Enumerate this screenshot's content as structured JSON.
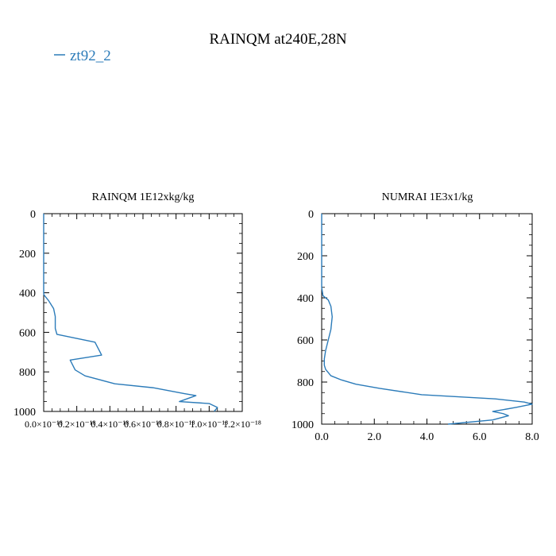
{
  "figure": {
    "title": "RAINQM at240E,28N",
    "legend": {
      "label": "zt92_2",
      "color": "#2b7bb9"
    }
  },
  "chart_data": [
    {
      "type": "line",
      "title": "RAINQM  1E12xkg/kg",
      "xlim": [
        0,
        1.2e-18
      ],
      "ylim": [
        1000,
        0
      ],
      "y_inverted": true,
      "xticks": [
        0,
        2e-19,
        4e-19,
        6e-19,
        8e-19,
        1e-18,
        1.2e-18
      ],
      "xtick_labels": [
        "0.0×10⁻¹⁸",
        "0.2×10⁻¹⁸",
        "0.4×10⁻¹⁸",
        "0.6×10⁻¹⁸",
        "0.8×10⁻¹⁸",
        "1.0×10⁻¹⁸",
        "1.2×10⁻¹⁸"
      ],
      "yticks": [
        0,
        200,
        400,
        600,
        800,
        1000
      ],
      "ytick_labels": [
        "0",
        "200",
        "400",
        "600",
        "800",
        "1000"
      ],
      "series": [
        {
          "name": "zt92_2",
          "color": "#2b7bb9",
          "x": [
            0,
            0,
            0,
            0,
            0,
            0,
            0,
            1e-21,
            3e-20,
            6e-20,
            7e-20,
            7e-20,
            7e-20,
            8e-20,
            3.1e-19,
            3.5e-19,
            1.6e-19,
            1.9e-19,
            2.5e-19,
            4.3e-19,
            6.6e-19,
            8.5e-19,
            9.2e-19,
            8.2e-19,
            1e-18,
            1.05e-18,
            1.03e-18
          ],
          "y": [
            0,
            100,
            200,
            300,
            350,
            380,
            400,
            410,
            440,
            480,
            520,
            560,
            580,
            610,
            650,
            715,
            740,
            790,
            820,
            860,
            880,
            910,
            920,
            950,
            960,
            980,
            1000
          ]
        }
      ]
    },
    {
      "type": "line",
      "title": "NUMRAI  1E3x1/kg",
      "xlim": [
        0,
        8
      ],
      "ylim": [
        1000,
        0
      ],
      "y_inverted": true,
      "xticks": [
        0,
        2,
        4,
        6,
        8
      ],
      "xtick_labels": [
        "0.0",
        "2.0",
        "4.0",
        "6.0",
        "8.0"
      ],
      "yticks": [
        0,
        200,
        400,
        600,
        800,
        1000
      ],
      "ytick_labels": [
        "0",
        "200",
        "400",
        "600",
        "800",
        "1000"
      ],
      "series": [
        {
          "name": "zt92_2",
          "color": "#2b7bb9",
          "x": [
            0,
            0,
            0,
            0,
            0.05,
            0.25,
            0.35,
            0.4,
            0.35,
            0.25,
            0.15,
            0.1,
            0.1,
            0.15,
            0.35,
            0.75,
            1.3,
            2.2,
            3.8,
            6.6,
            7.7,
            8.0,
            7.4,
            6.5,
            6.9,
            7.1,
            6.5,
            4.8
          ],
          "y": [
            0,
            200,
            300,
            350,
            390,
            410,
            440,
            490,
            550,
            600,
            650,
            690,
            720,
            740,
            770,
            790,
            810,
            830,
            860,
            880,
            895,
            905,
            920,
            940,
            950,
            960,
            980,
            1000
          ]
        }
      ]
    }
  ]
}
